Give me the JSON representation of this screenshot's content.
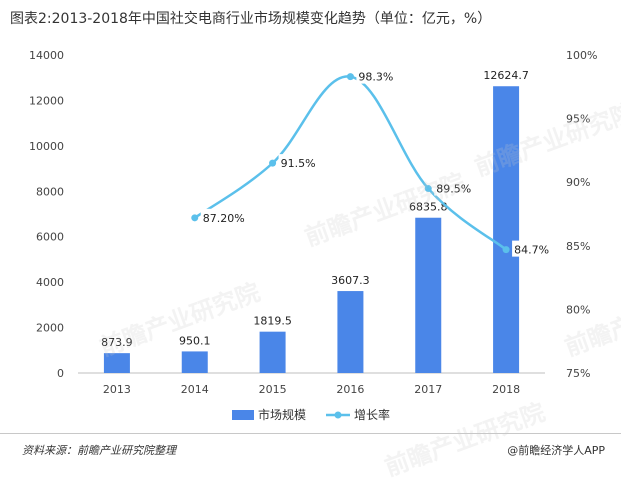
{
  "title": "图表2:2013-2018年中国社交电商行业市场规模变化趋势（单位：亿元，%）",
  "footer": {
    "source": "资料来源：前瞻产业研究院整理",
    "credit": "@前瞻经济学人APP"
  },
  "watermark": "前瞻产业研究院",
  "colors": {
    "bar": "#4a86e8",
    "line": "#5bc0eb",
    "grid": "#d9d9d9"
  },
  "chart_data": {
    "type": "bar",
    "categories": [
      "2013",
      "2014",
      "2015",
      "2016",
      "2017",
      "2018"
    ],
    "series": [
      {
        "name": "市场规模",
        "type": "bar",
        "axis": "left",
        "values": [
          873.9,
          950.1,
          1819.5,
          3607.3,
          6835.8,
          12624.7
        ],
        "labels": [
          "873.9",
          "950.1",
          "1819.5",
          "3607.3",
          "6835.8",
          "12624.7"
        ]
      },
      {
        "name": "增长率",
        "type": "line",
        "axis": "right",
        "values": [
          null,
          87.2,
          91.5,
          98.3,
          89.5,
          84.7
        ],
        "labels": [
          "",
          "87.20%",
          "91.5%",
          "98.3%",
          "89.5%",
          "84.7%"
        ]
      }
    ],
    "y_left": {
      "min": 0,
      "max": 14000,
      "ticks": [
        "0",
        "2000",
        "4000",
        "6000",
        "8000",
        "10000",
        "12000",
        "14000"
      ]
    },
    "y_right": {
      "min": 75,
      "max": 100,
      "ticks": [
        "75%",
        "80%",
        "85%",
        "90%",
        "95%",
        "100%"
      ]
    },
    "legend_position": "bottom-center",
    "grid": false
  }
}
